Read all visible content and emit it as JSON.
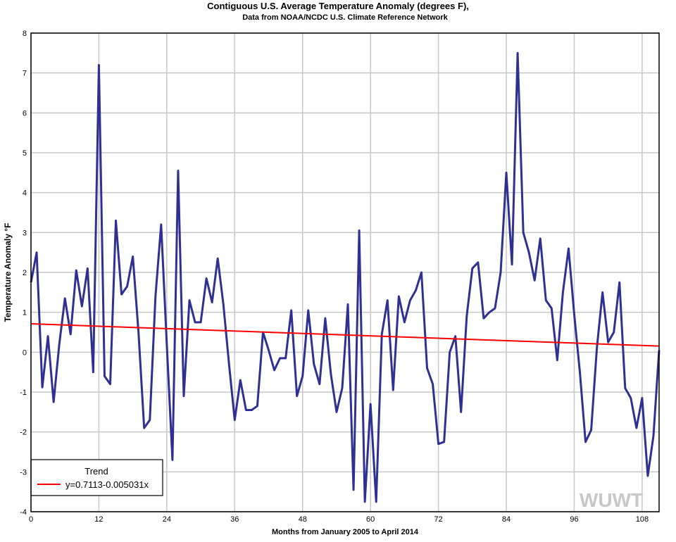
{
  "chart_data": {
    "type": "line",
    "title": "Contiguous U.S. Average Temperature Anomaly (degrees F),",
    "subtitle": "Data from NOAA/NCDC U.S. Climate Reference Network",
    "xlabel": "Months from January 2005 to April 2014",
    "ylabel": "Temperature Anomaly °F",
    "xlim": [
      0,
      111
    ],
    "ylim": [
      -4,
      8
    ],
    "x_ticks": [
      "0",
      "12",
      "24",
      "36",
      "48",
      "60",
      "72",
      "84",
      "96",
      "108"
    ],
    "y_ticks": [
      "8",
      "7",
      "6",
      "5",
      "4",
      "3",
      "2",
      "1",
      "0",
      "-1",
      "-2",
      "-3",
      "-4"
    ],
    "grid": true,
    "legend_placement": "bottom-left",
    "series": [
      {
        "color": "#2e3192",
        "values": [
          1.75,
          2.5,
          -0.88,
          0.4,
          -1.25,
          0.2,
          1.35,
          0.45,
          2.05,
          1.15,
          2.1,
          -0.5,
          7.2,
          -0.6,
          -0.8,
          3.3,
          1.45,
          1.65,
          2.4,
          0.5,
          -1.9,
          -1.7,
          1.4,
          3.2,
          0.2,
          -2.7,
          4.55,
          -1.1,
          1.3,
          0.75,
          0.75,
          1.85,
          1.25,
          2.35,
          1.2,
          -0.3,
          -1.7,
          -0.7,
          -1.45,
          -1.45,
          -1.35,
          0.5,
          0.05,
          -0.45,
          -0.15,
          -0.15,
          1.05,
          -1.1,
          -0.6,
          1.05,
          -0.3,
          -0.8,
          0.85,
          -0.55,
          -1.5,
          -0.9,
          1.2,
          -3.45,
          3.05,
          -3.75,
          -1.3,
          -3.75,
          0.45,
          1.3,
          -0.95,
          1.4,
          0.75,
          1.3,
          1.55,
          2.0,
          -0.4,
          -0.8,
          -2.3,
          -2.25,
          0.0,
          0.4,
          -1.5,
          0.9,
          2.1,
          2.25,
          0.85,
          1.0,
          1.1,
          2.0,
          4.5,
          2.2,
          7.5,
          3.0,
          2.5,
          1.8,
          2.85,
          1.3,
          1.1,
          -0.2,
          1.5,
          2.6,
          0.95,
          -0.5,
          -2.25,
          -1.95,
          0.1,
          1.5,
          0.25,
          0.5,
          1.75,
          -0.9,
          -1.15,
          -1.9,
          -1.15,
          -3.1,
          -2.1,
          0.05
        ]
      },
      {
        "name": "Trend",
        "color": "#ff0000",
        "intercept": 0.7113,
        "slope": -0.005031
      }
    ],
    "legend": {
      "title": "Trend",
      "entry": "y=0.7113-0.005031x"
    },
    "watermark": "WUWT"
  }
}
